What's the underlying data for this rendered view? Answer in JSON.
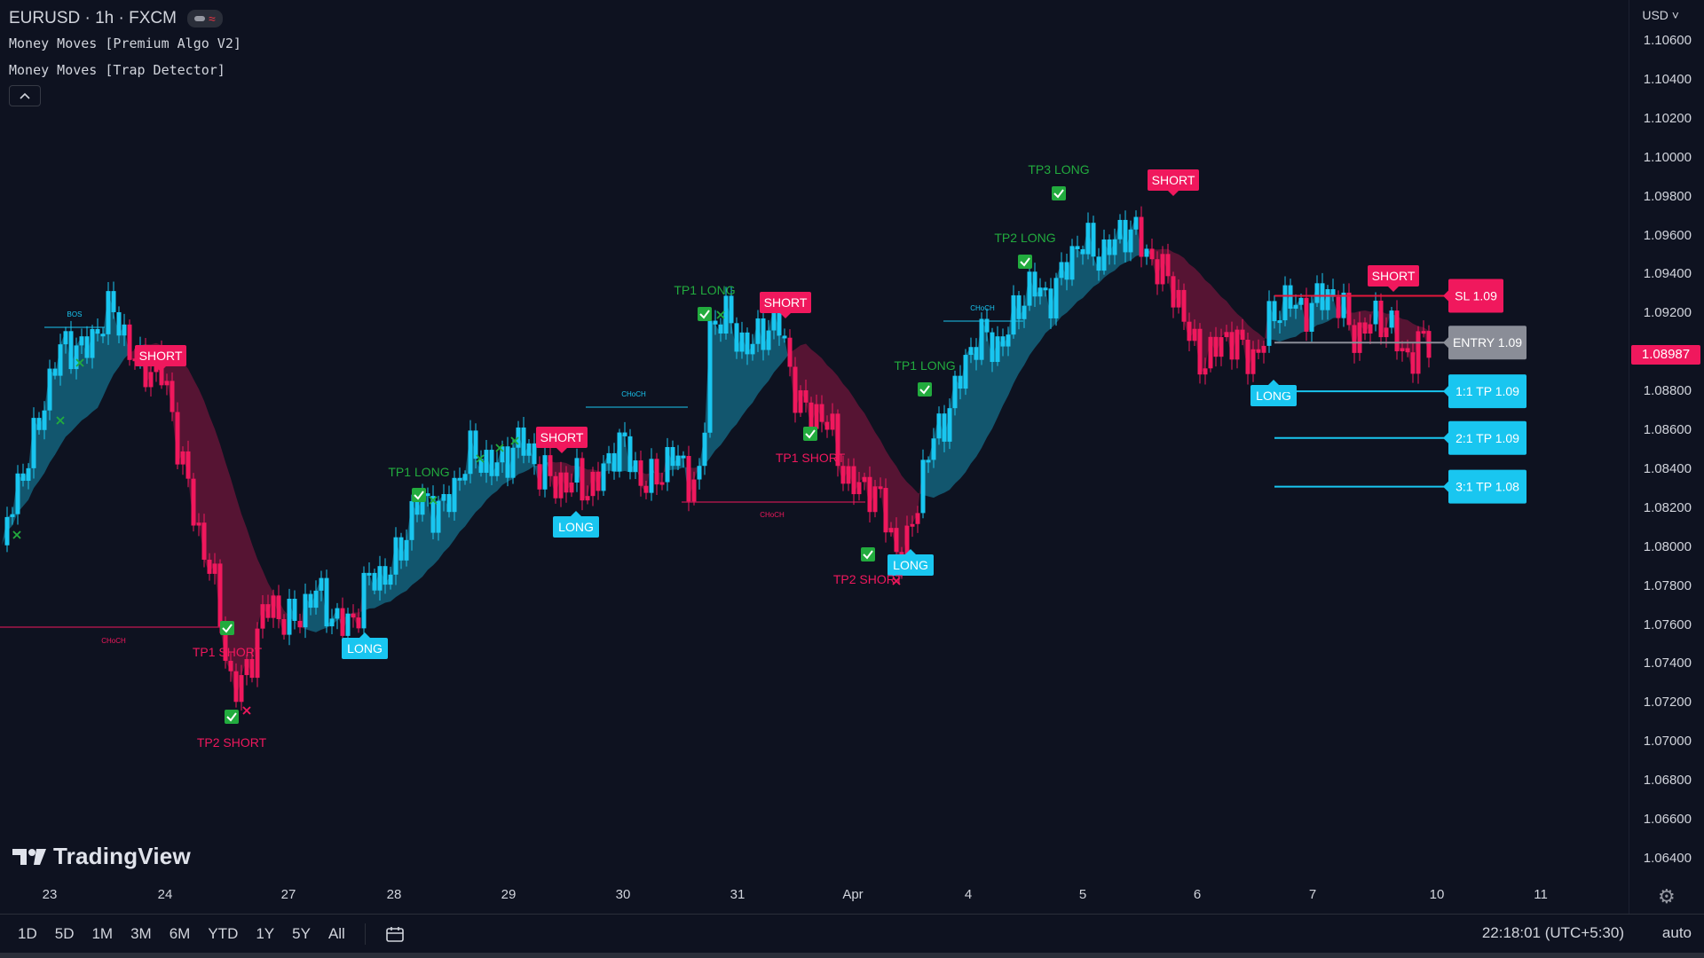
{
  "header": {
    "symbol": "EURUSD · 1h · FXCM",
    "indicators": [
      "Money Moves [Premium Algo V2]",
      "Money Moves [Trap Detector]"
    ],
    "collapse_glyph": "^"
  },
  "colors": {
    "background": "#0e1220",
    "bull": "#19c6f0",
    "bear": "#f0185d",
    "tp_green": "#22ab3e",
    "sl_red": "#e3163a",
    "entry_gray": "#8a8d97"
  },
  "price_axis": {
    "currency": "USD",
    "ticks": [
      "1.10600",
      "1.10400",
      "1.10200",
      "1.10000",
      "1.09800",
      "1.09600",
      "1.09400",
      "1.09200",
      "1.08800",
      "1.08600",
      "1.08400",
      "1.08200",
      "1.08000",
      "1.07800",
      "1.07600",
      "1.07400",
      "1.07200",
      "1.07000",
      "1.06800",
      "1.06600",
      "1.06400"
    ],
    "current_price": "1.08987"
  },
  "time_axis": {
    "ticks": [
      "23",
      "24",
      "27",
      "28",
      "29",
      "30",
      "31",
      "Apr",
      "4",
      "5",
      "6",
      "7",
      "10",
      "11"
    ]
  },
  "chart_data": {
    "type": "candlestick",
    "symbol": "EURUSD",
    "timeframe": "1h",
    "ylim": [
      1.063,
      1.107
    ],
    "close_path": [
      {
        "x": "23",
        "price": 1.079
      },
      {
        "x": "23",
        "price": 1.0885
      },
      {
        "x": "24",
        "price": 1.0918
      },
      {
        "x": "24",
        "price": 1.0892
      },
      {
        "x": "24",
        "price": 1.0837
      },
      {
        "x": "27",
        "price": 1.0728
      },
      {
        "x": "27",
        "price": 1.0765
      },
      {
        "x": "27",
        "price": 1.077
      },
      {
        "x": "28",
        "price": 1.0765
      },
      {
        "x": "28",
        "price": 1.081
      },
      {
        "x": "29",
        "price": 1.0848
      },
      {
        "x": "29",
        "price": 1.0845
      },
      {
        "x": "29",
        "price": 1.0825
      },
      {
        "x": "30",
        "price": 1.0847
      },
      {
        "x": "30",
        "price": 1.0838
      },
      {
        "x": "30",
        "price": 1.084
      },
      {
        "x": "31",
        "price": 1.0912
      },
      {
        "x": "31",
        "price": 1.0908
      },
      {
        "x": "Apr",
        "price": 1.0875
      },
      {
        "x": "Apr",
        "price": 1.0818
      },
      {
        "x": "Apr",
        "price": 1.08
      },
      {
        "x": "4",
        "price": 1.088
      },
      {
        "x": "4",
        "price": 1.0895
      },
      {
        "x": "5",
        "price": 1.0935
      },
      {
        "x": "5",
        "price": 1.0958
      },
      {
        "x": "5",
        "price": 1.0955
      },
      {
        "x": "6",
        "price": 1.0905
      },
      {
        "x": "6",
        "price": 1.09
      },
      {
        "x": "7",
        "price": 1.093
      },
      {
        "x": "7",
        "price": 1.0918
      },
      {
        "x": "10",
        "price": 1.0899
      }
    ],
    "structure_labels": [
      "BOS",
      "CHoCH"
    ],
    "signals": [
      {
        "text": "SHORT",
        "type": "short"
      },
      {
        "text": "SHORT",
        "type": "short"
      },
      {
        "text": "SHORT",
        "type": "short"
      },
      {
        "text": "SHORT",
        "type": "short"
      },
      {
        "text": "SHORT",
        "type": "short"
      },
      {
        "text": "LONG",
        "type": "long"
      },
      {
        "text": "LONG",
        "type": "long"
      },
      {
        "text": "LONG",
        "type": "long"
      },
      {
        "text": "LONG",
        "type": "long"
      }
    ],
    "take_profits": [
      {
        "text": "TP1 SHORT"
      },
      {
        "text": "TP2 SHORT"
      },
      {
        "text": "TP1 LONG"
      },
      {
        "text": "TP1 LONG"
      },
      {
        "text": "TP1 SHORT"
      },
      {
        "text": "TP2 SHORT"
      },
      {
        "text": "TP1 LONG"
      },
      {
        "text": "TP2 LONG"
      },
      {
        "text": "TP3 LONG"
      }
    ],
    "trade_levels": [
      {
        "text": "SL 1.09",
        "kind": "sl",
        "price": 1.0929
      },
      {
        "text": "ENTRY 1.09",
        "kind": "entry",
        "price": 1.0905
      },
      {
        "text": "1:1 TP 1.09",
        "kind": "tp",
        "price": 1.088
      },
      {
        "text": "2:1 TP 1.09",
        "kind": "tp",
        "price": 1.0856
      },
      {
        "text": "3:1 TP 1.08",
        "kind": "tp",
        "price": 1.0831
      }
    ]
  },
  "watermark": "TradingView",
  "bottom_bar": {
    "ranges": [
      "1D",
      "5D",
      "1M",
      "3M",
      "6M",
      "YTD",
      "1Y",
      "5Y",
      "All"
    ],
    "clock": "22:18:01 (UTC+5:30)",
    "auto": "auto"
  }
}
